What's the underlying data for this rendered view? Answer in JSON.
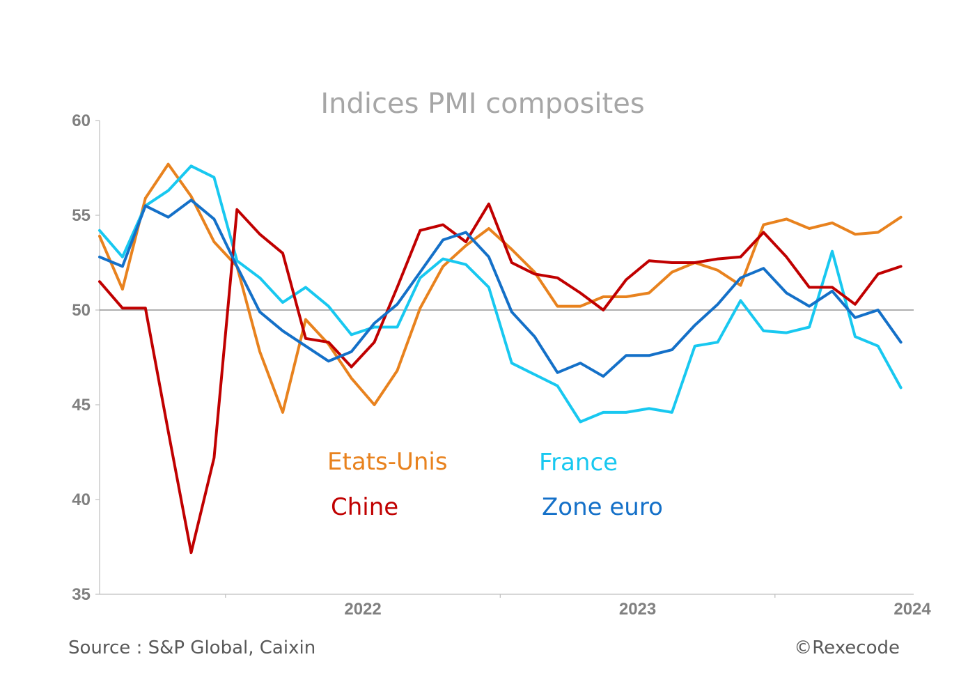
{
  "chart_data": {
    "type": "line",
    "title": "Indices PMI composites",
    "ylim": [
      35,
      60
    ],
    "yticks": [
      35,
      40,
      45,
      50,
      55,
      60
    ],
    "reference_line": 50,
    "x_start": "2021-07",
    "x_periods": 36,
    "x_tick_labels": [
      {
        "label": "2022",
        "period": "2022"
      },
      {
        "label": "2023",
        "period": "2023"
      },
      {
        "label": "2024",
        "period": "2024"
      }
    ],
    "series": [
      {
        "name": "Etats-Unis",
        "color": "#e8821e",
        "values": [
          53.9,
          51.1,
          55.9,
          57.7,
          56.0,
          53.6,
          52.3,
          47.8,
          44.6,
          49.5,
          48.2,
          46.4,
          45.0,
          46.8,
          50.1,
          52.3,
          53.4,
          54.3,
          53.2,
          52.0,
          50.2,
          50.2,
          50.7,
          50.7,
          50.9,
          52.0,
          52.5,
          52.1,
          51.3,
          54.5,
          54.8,
          54.3,
          54.6,
          54.0,
          54.1,
          54.9
        ]
      },
      {
        "name": "France",
        "color": "#18c8f0",
        "values": [
          54.2,
          52.8,
          55.5,
          56.3,
          57.6,
          57.0,
          52.6,
          51.7,
          50.4,
          51.2,
          50.2,
          48.7,
          49.1,
          49.1,
          51.7,
          52.7,
          52.4,
          51.2,
          47.2,
          46.6,
          46.0,
          44.1,
          44.6,
          44.6,
          44.8,
          44.6,
          48.1,
          48.3,
          50.5,
          48.9,
          48.8,
          49.1,
          53.1,
          48.6,
          48.1,
          45.9
        ]
      },
      {
        "name": "Chine",
        "color": "#c00000",
        "values": [
          51.5,
          50.1,
          50.1,
          43.6,
          37.2,
          42.2,
          55.3,
          54.0,
          53.0,
          48.5,
          48.3,
          47.0,
          48.3,
          51.2,
          54.2,
          54.5,
          53.6,
          55.6,
          52.5,
          51.9,
          51.7,
          50.9,
          50.0,
          51.6,
          52.6,
          52.5,
          52.5,
          52.7,
          52.8,
          54.1,
          52.8,
          51.2,
          51.2,
          50.3,
          51.9,
          52.3
        ]
      },
      {
        "name": "Zone euro",
        "color": "#1470c8",
        "values": [
          52.8,
          52.3,
          55.5,
          54.9,
          55.8,
          54.8,
          52.3,
          49.9,
          48.9,
          48.1,
          47.3,
          47.8,
          49.3,
          50.3,
          52.0,
          53.7,
          54.1,
          52.8,
          49.9,
          48.6,
          46.7,
          47.2,
          46.5,
          47.6,
          47.6,
          47.9,
          49.2,
          50.3,
          51.7,
          52.2,
          50.9,
          50.2,
          51.0,
          49.6,
          50.0,
          48.3
        ]
      }
    ]
  },
  "footer": {
    "source": "Source : S&P Global, Caixin",
    "copyright": "©Rexecode"
  }
}
